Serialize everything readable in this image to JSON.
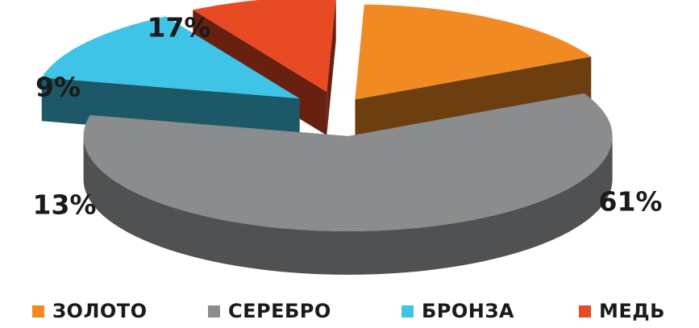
{
  "chart_data": {
    "type": "pie",
    "style": "3d-exploded",
    "title": "",
    "categories": [
      "ЗОЛОТО",
      "СЕРЕБРО",
      "БРОНЗА",
      "МЕДЬ"
    ],
    "values": [
      17,
      61,
      13,
      9
    ],
    "value_labels": [
      "17%",
      "61%",
      "13%",
      "9%"
    ],
    "colors": [
      "#F28A24",
      "#8A8C8E",
      "#3FC3E6",
      "#E84A23"
    ],
    "legend_position": "bottom"
  }
}
